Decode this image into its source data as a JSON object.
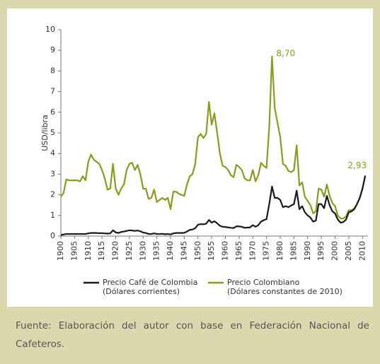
{
  "chart_data": {
    "type": "line",
    "y_label": "USD/libra",
    "x": [
      1900,
      1901,
      1902,
      1903,
      1904,
      1905,
      1906,
      1907,
      1908,
      1909,
      1910,
      1911,
      1912,
      1913,
      1914,
      1915,
      1916,
      1917,
      1918,
      1919,
      1920,
      1921,
      1922,
      1923,
      1924,
      1925,
      1926,
      1927,
      1928,
      1929,
      1930,
      1931,
      1932,
      1933,
      1934,
      1935,
      1936,
      1937,
      1938,
      1939,
      1940,
      1941,
      1942,
      1943,
      1944,
      1945,
      1946,
      1947,
      1948,
      1949,
      1950,
      1951,
      1952,
      1953,
      1954,
      1955,
      1956,
      1957,
      1958,
      1959,
      1960,
      1961,
      1962,
      1963,
      1964,
      1965,
      1966,
      1967,
      1968,
      1969,
      1970,
      1971,
      1972,
      1973,
      1974,
      1975,
      1976,
      1977,
      1978,
      1979,
      1980,
      1981,
      1982,
      1983,
      1984,
      1985,
      1986,
      1987,
      1988,
      1989,
      1990,
      1991,
      1992,
      1993,
      1994,
      1995,
      1996,
      1997,
      1998,
      1999,
      2000,
      2001,
      2002,
      2003,
      2004,
      2005,
      2006,
      2007,
      2008,
      2009,
      2010,
      2011
    ],
    "series": [
      {
        "name": "Precio Café de Colombia",
        "name_note": "(Dólares corrientes)",
        "color": "#1a1a1a",
        "values": [
          0.05,
          0.08,
          0.1,
          0.1,
          0.1,
          0.1,
          0.1,
          0.1,
          0.1,
          0.1,
          0.13,
          0.15,
          0.15,
          0.15,
          0.14,
          0.14,
          0.13,
          0.12,
          0.13,
          0.28,
          0.18,
          0.15,
          0.2,
          0.22,
          0.25,
          0.28,
          0.27,
          0.25,
          0.27,
          0.23,
          0.17,
          0.15,
          0.1,
          0.1,
          0.13,
          0.1,
          0.1,
          0.11,
          0.09,
          0.1,
          0.08,
          0.13,
          0.15,
          0.15,
          0.15,
          0.16,
          0.22,
          0.3,
          0.32,
          0.38,
          0.55,
          0.58,
          0.57,
          0.6,
          0.78,
          0.65,
          0.72,
          0.62,
          0.5,
          0.45,
          0.44,
          0.42,
          0.4,
          0.39,
          0.47,
          0.47,
          0.45,
          0.4,
          0.41,
          0.42,
          0.53,
          0.45,
          0.53,
          0.7,
          0.77,
          0.82,
          1.55,
          2.4,
          1.85,
          1.85,
          1.75,
          1.4,
          1.45,
          1.4,
          1.48,
          1.55,
          2.2,
          1.3,
          1.45,
          1.15,
          1.0,
          0.9,
          0.7,
          0.75,
          1.55,
          1.55,
          1.35,
          1.95,
          1.5,
          1.2,
          1.1,
          0.8,
          0.65,
          0.68,
          0.8,
          1.15,
          1.2,
          1.3,
          1.55,
          1.85,
          2.3,
          2.93
        ]
      },
      {
        "name": "Precio Colombiano",
        "name_note": "(Dólares constantes de 2010)",
        "color": "#8c9a1f",
        "values": [
          1.9,
          2.1,
          2.75,
          2.7,
          2.7,
          2.7,
          2.7,
          2.65,
          2.9,
          2.7,
          3.6,
          3.95,
          3.7,
          3.6,
          3.5,
          3.2,
          2.8,
          2.25,
          2.3,
          3.5,
          2.3,
          2.0,
          2.3,
          2.5,
          3.2,
          3.5,
          3.55,
          3.2,
          3.45,
          3.0,
          2.3,
          2.3,
          1.8,
          1.85,
          2.25,
          1.65,
          1.75,
          1.85,
          1.75,
          1.85,
          1.3,
          2.15,
          2.15,
          2.05,
          2.0,
          1.95,
          2.5,
          2.9,
          3.0,
          3.5,
          4.8,
          4.95,
          4.75,
          4.95,
          6.5,
          5.4,
          5.95,
          5.0,
          4.0,
          3.4,
          3.35,
          3.2,
          2.95,
          2.85,
          3.45,
          3.35,
          3.2,
          2.8,
          2.7,
          2.7,
          3.2,
          2.65,
          2.95,
          3.55,
          3.4,
          3.3,
          5.3,
          8.7,
          6.2,
          5.5,
          4.8,
          3.5,
          3.4,
          3.15,
          3.1,
          3.2,
          4.4,
          2.45,
          2.6,
          1.9,
          1.7,
          1.5,
          1.1,
          1.2,
          2.3,
          2.25,
          1.9,
          2.5,
          1.95,
          1.6,
          1.45,
          1.0,
          0.85,
          0.85,
          0.95,
          1.25,
          1.25,
          1.35,
          1.55,
          1.85,
          2.3,
          2.93
        ],
        "value_labels": [
          null,
          null,
          null,
          null,
          null,
          null,
          null,
          null,
          null,
          null,
          null,
          null,
          null,
          null,
          null,
          null,
          null,
          null,
          null,
          null,
          null,
          null,
          null,
          null,
          null,
          null,
          null,
          null,
          null,
          null,
          null,
          null,
          null,
          null,
          null,
          null,
          null,
          null,
          null,
          null,
          null,
          null,
          null,
          null,
          null,
          null,
          null,
          null,
          null,
          null,
          null,
          null,
          null,
          null,
          null,
          null,
          null,
          null,
          null,
          null,
          null,
          null,
          null,
          null,
          null,
          null,
          null,
          null,
          null,
          null,
          null,
          null,
          null,
          null,
          null,
          null,
          null,
          "8,70",
          null,
          null,
          null,
          null,
          null,
          null,
          null,
          null,
          null,
          null,
          null,
          null,
          null,
          null,
          null,
          null,
          null,
          null,
          null,
          null,
          null,
          null,
          null,
          null,
          null,
          null,
          null,
          null,
          null,
          null,
          null,
          null,
          null,
          "2,93"
        ]
      }
    ],
    "xlim": [
      1900,
      2012
    ],
    "xticks": [
      1900,
      1905,
      1910,
      1915,
      1920,
      1925,
      1930,
      1935,
      1940,
      1945,
      1950,
      1955,
      1960,
      1965,
      1970,
      1975,
      1980,
      1985,
      1990,
      1995,
      2000,
      2005,
      2010
    ],
    "ylim": [
      0,
      10
    ],
    "yticks": [
      0,
      1,
      2,
      3,
      4,
      5,
      6,
      7,
      8,
      9,
      10
    ],
    "source": "Fuente: Elaboración del autor con base en Federación Nacional de Cafeteros."
  }
}
